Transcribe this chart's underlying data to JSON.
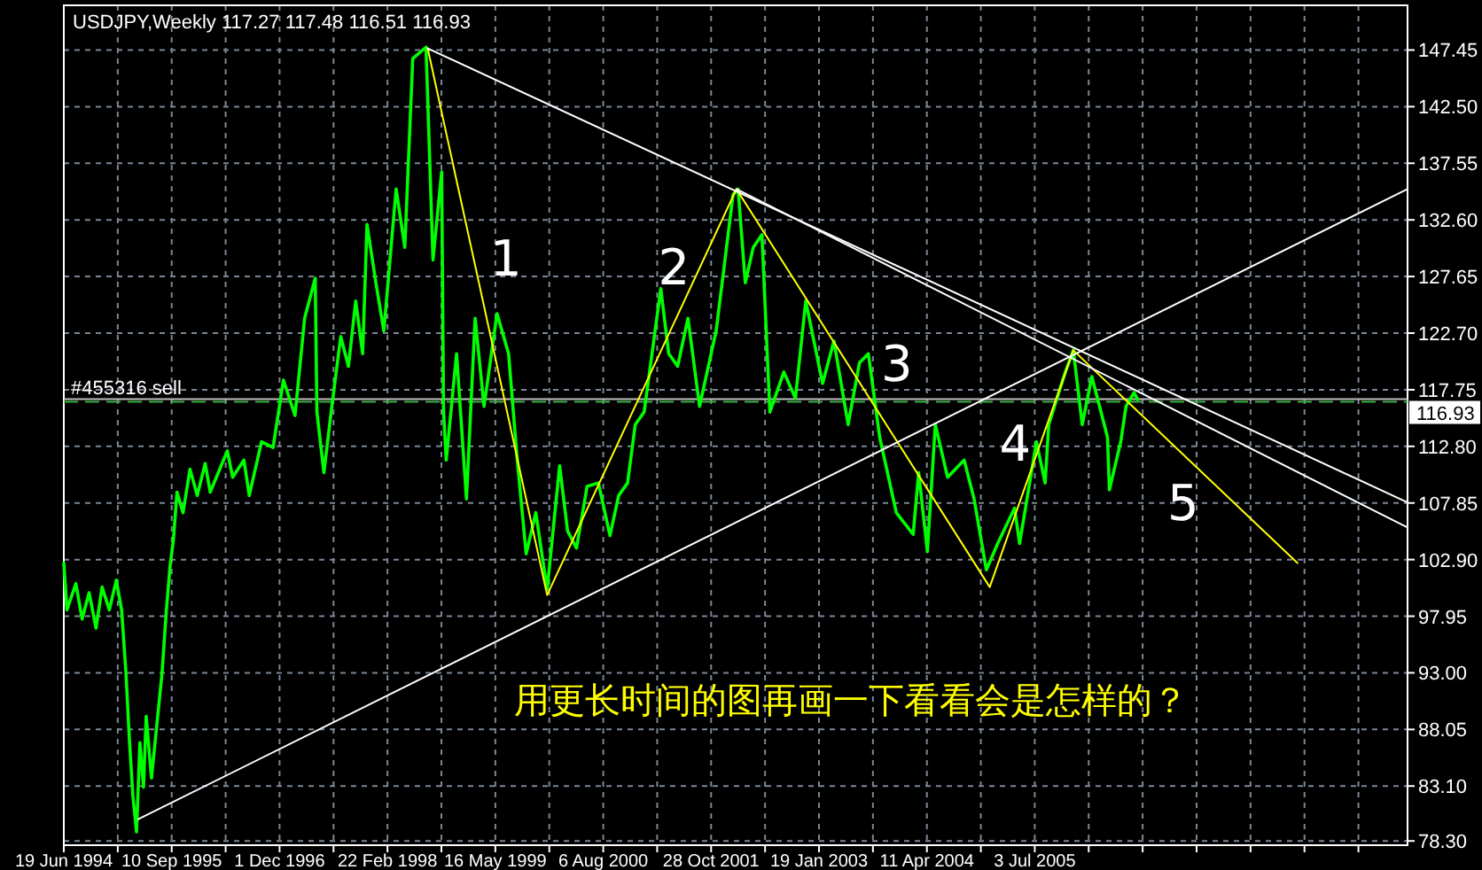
{
  "chart_data": {
    "type": "line",
    "title": "USDJPY,Weekly 117.27 117.48 116.51 116.93",
    "xlim": [
      "1994-06-19",
      "2009-09-28"
    ],
    "ylim": [
      77.93,
      151.36
    ],
    "xticks": [
      {
        "value": "1994-06-19",
        "label": "19 Jun 1994"
      },
      {
        "value": "1995-01-29",
        "label": null
      },
      {
        "value": "1995-09-10",
        "label": "10 Sep 1995"
      },
      {
        "value": "1996-04-21",
        "label": null
      },
      {
        "value": "1996-12-01",
        "label": "1 Dec 1996"
      },
      {
        "value": "1997-07-13",
        "label": null
      },
      {
        "value": "1998-02-22",
        "label": "22 Feb 1998"
      },
      {
        "value": "1998-10-04",
        "label": null
      },
      {
        "value": "1999-05-16",
        "label": "16 May 1999"
      },
      {
        "value": "1999-12-26",
        "label": null
      },
      {
        "value": "2000-08-06",
        "label": "6 Aug 2000"
      },
      {
        "value": "2001-03-18",
        "label": null
      },
      {
        "value": "2001-10-28",
        "label": "28 Oct 2001"
      },
      {
        "value": "2002-06-09",
        "label": null
      },
      {
        "value": "2003-01-19",
        "label": "19 Jan 2003"
      },
      {
        "value": "2003-08-31",
        "label": null
      },
      {
        "value": "2004-04-11",
        "label": "11 Apr 2004"
      },
      {
        "value": "2004-11-21",
        "label": null
      },
      {
        "value": "2005-07-03",
        "label": "3 Jul 2005"
      },
      {
        "value": "2006-02-12",
        "label": null
      },
      {
        "value": "2006-09-24",
        "label": null
      },
      {
        "value": "2007-05-06",
        "label": null
      },
      {
        "value": "2007-12-16",
        "label": null
      },
      {
        "value": "2008-07-27",
        "label": null
      },
      {
        "value": "2009-03-08",
        "label": null
      }
    ],
    "yticks": [
      {
        "value": 147.45,
        "label": "147.45"
      },
      {
        "value": 142.5,
        "label": "142.50"
      },
      {
        "value": 137.55,
        "label": "137.55"
      },
      {
        "value": 132.6,
        "label": "132.60"
      },
      {
        "value": 127.65,
        "label": "127.65"
      },
      {
        "value": 122.7,
        "label": "122.70"
      },
      {
        "value": 117.75,
        "label": "117.75"
      },
      {
        "value": 112.8,
        "label": "112.80"
      },
      {
        "value": 107.85,
        "label": "107.85"
      },
      {
        "value": 102.9,
        "label": "102.90"
      },
      {
        "value": 97.95,
        "label": "97.95"
      },
      {
        "value": 93.0,
        "label": "93.00"
      },
      {
        "value": 88.05,
        "label": "88.05"
      },
      {
        "value": 83.1,
        "label": "83.10"
      },
      {
        "value": 78.3,
        "label": "78.30"
      }
    ],
    "grid": true,
    "ref_lines": [
      {
        "axis": "y",
        "value": 116.93,
        "label": "116.93",
        "color": "#c0c0c0"
      },
      {
        "axis": "y",
        "value": 116.7,
        "label": "#455316 sell",
        "color": "#3cb043",
        "line_style": "dashed"
      }
    ],
    "series": [
      {
        "color": "#00ff00",
        "x": [
          "1994-06-19",
          "1994-07-02",
          "1994-08-08",
          "1994-09-03",
          "1994-10-02",
          "1994-10-31",
          "1994-11-25",
          "1994-12-25",
          "1995-01-23",
          "1995-02-14",
          "1995-03-04",
          "1995-03-19",
          "1995-04-02",
          "1995-04-17",
          "1995-05-01",
          "1995-05-16",
          "1995-05-27",
          "1995-06-18",
          "1995-07-10",
          "1995-08-01",
          "1995-08-19",
          "1995-09-03",
          "1995-09-17",
          "1995-10-02",
          "1995-10-27",
          "1995-11-25",
          "1995-12-25",
          "1996-01-27",
          "1996-02-17",
          "1996-04-28",
          "1996-05-20",
          "1996-07-06",
          "1996-07-28",
          "1996-09-17",
          "1996-11-04",
          "1996-12-17",
          "1997-02-03",
          "1997-03-15",
          "1997-04-28",
          "1997-05-05",
          "1997-06-03",
          "1997-07-06",
          "1997-08-12",
          "1997-09-13",
          "1997-10-13",
          "1997-11-11",
          "1997-11-29",
          "1998-01-05",
          "1998-02-07",
          "1998-03-30",
          "1998-05-05",
          "1998-06-07",
          "1998-08-01",
          "1998-08-30",
          "1998-10-05",
          "1998-10-13",
          "1998-10-24",
          "1998-12-06",
          "1999-01-16",
          "1999-02-21",
          "1999-03-30",
          "1999-05-23",
          "1999-07-10",
          "1999-08-15",
          "1999-09-21",
          "1999-10-31",
          "1999-12-17",
          "2000-02-07",
          "2000-03-11",
          "2000-04-17",
          "2000-05-31",
          "2000-07-17",
          "2000-09-03",
          "2000-10-09",
          "2000-11-15",
          "2000-12-17",
          "2001-01-23",
          "2001-04-02",
          "2001-05-05",
          "2001-06-11",
          "2001-07-24",
          "2001-09-10",
          "2001-11-18",
          "2002-01-27",
          "2002-02-17",
          "2002-03-19",
          "2002-04-21",
          "2002-05-27",
          "2002-06-29",
          "2002-08-26",
          "2002-10-13",
          "2002-11-25",
          "2003-02-03",
          "2003-03-22",
          "2003-05-20",
          "2003-07-06",
          "2003-08-12",
          "2003-09-28",
          "2003-12-06",
          "2004-02-14",
          "2004-03-08",
          "2004-04-13",
          "2004-05-16",
          "2004-07-06",
          "2004-09-13",
          "2004-10-24",
          "2004-12-14",
          "2005-01-30",
          "2005-04-10",
          "2005-05-01",
          "2005-07-10",
          "2005-08-15",
          "2005-08-30",
          "2005-11-07",
          "2005-12-10",
          "2006-01-16",
          "2006-02-25",
          "2006-05-01",
          "2006-05-09",
          "2006-06-25",
          "2006-07-17",
          "2006-08-19",
          "2006-09-03"
        ],
        "values": [
          102.6,
          98.5,
          100.8,
          97.7,
          100.0,
          96.9,
          100.5,
          98.5,
          101.1,
          98.5,
          93.0,
          86.9,
          82.2,
          79.1,
          86.9,
          83.0,
          89.2,
          83.8,
          88.4,
          93.0,
          98.5,
          102.3,
          104.6,
          108.8,
          107.0,
          110.8,
          108.5,
          111.3,
          108.8,
          112.4,
          110.1,
          111.6,
          108.5,
          113.2,
          112.7,
          118.6,
          115.5,
          124.0,
          127.5,
          115.8,
          110.5,
          116.3,
          122.4,
          119.8,
          125.5,
          120.9,
          132.2,
          127.1,
          122.9,
          135.3,
          130.2,
          146.7,
          147.7,
          129.1,
          136.8,
          115.8,
          111.6,
          120.9,
          108.2,
          124.0,
          116.3,
          124.4,
          120.9,
          111.6,
          103.4,
          107.0,
          100.3,
          111.1,
          105.4,
          103.9,
          109.3,
          109.6,
          105.0,
          108.5,
          109.6,
          114.7,
          115.8,
          126.6,
          120.9,
          119.8,
          124.0,
          116.3,
          122.9,
          134.8,
          135.3,
          127.1,
          130.2,
          131.3,
          115.8,
          119.3,
          117.0,
          125.5,
          118.3,
          122.0,
          114.7,
          120.1,
          120.9,
          113.6,
          107.0,
          105.1,
          110.5,
          103.6,
          114.7,
          110.1,
          111.6,
          108.2,
          102.0,
          104.3,
          107.4,
          104.3,
          113.2,
          109.6,
          114.7,
          119.3,
          121.2,
          114.7,
          118.9,
          113.6,
          109.0,
          113.2,
          116.3,
          117.5,
          116.9
        ]
      },
      {
        "color": "#ffff00",
        "x": [
          "1998-08-08",
          "1999-12-17",
          "2002-02-10",
          "2004-12-28",
          "2005-12-10",
          "2008-06-28"
        ],
        "values": [
          147.6,
          99.8,
          135.3,
          100.5,
          121.2,
          102.6
        ]
      },
      {
        "color": "#ffffff",
        "x": [
          "1998-08-08",
          "2009-09-28"
        ],
        "values": [
          147.6,
          107.9
        ]
      },
      {
        "color": "#ffffff",
        "x": [
          "2002-02-10",
          "2009-09-28"
        ],
        "values": [
          135.3,
          105.7
        ]
      },
      {
        "color": "#ffffff",
        "x": [
          "1995-04-24",
          "2009-09-28"
        ],
        "values": [
          80.2,
          135.3
        ]
      }
    ],
    "annotations": [
      "1",
      "2",
      "3",
      "4",
      "5",
      "用更长时间的图再画一下看看会是怎样的？"
    ]
  }
}
